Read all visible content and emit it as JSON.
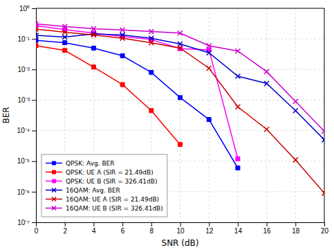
{
  "chart_data": {
    "type": "line",
    "xlabel": "SNR (dB)",
    "ylabel": "BER",
    "log": "y",
    "grid": true,
    "legend": "lower left",
    "xlim": [
      0,
      20
    ],
    "xticks": [
      0,
      2,
      4,
      6,
      8,
      10,
      12,
      14,
      16,
      18,
      20
    ],
    "ylim": [
      1e-07,
      1
    ],
    "yticks": [
      {
        "value": 1e-07,
        "label": "10⁻⁷"
      },
      {
        "value": 1e-06,
        "label": "10⁻⁶"
      },
      {
        "value": 1e-05,
        "label": "10⁻⁵"
      },
      {
        "value": 0.0001,
        "label": "10⁻⁴"
      },
      {
        "value": 0.001,
        "label": "10⁻³"
      },
      {
        "value": 0.01,
        "label": "10⁻²"
      },
      {
        "value": 0.1,
        "label": "10⁻¹"
      },
      {
        "value": 1,
        "label": "10⁰"
      }
    ],
    "series": [
      {
        "name": "QPSK: Avg. BER",
        "color": "#0000ff",
        "marker": "square",
        "x": [
          0,
          2,
          4,
          6,
          8,
          10,
          12,
          14
        ],
        "values": [
          0.09,
          0.075,
          0.05,
          0.028,
          0.008,
          0.0012,
          0.00023,
          6e-06
        ]
      },
      {
        "name": "QPSK: UE A (SIR = 21.49dB)",
        "color": "#ff0000",
        "marker": "square",
        "x": [
          0,
          2,
          4,
          6,
          8,
          10
        ],
        "values": [
          0.06,
          0.042,
          0.012,
          0.0032,
          0.00045,
          3.5e-05
        ]
      },
      {
        "name": "QPSK: UE B (SIR = 326.41dB)",
        "color": "#ff00ff",
        "marker": "square",
        "x": [
          0,
          2,
          4,
          6,
          8,
          10,
          12,
          14
        ],
        "values": [
          0.27,
          0.2,
          0.155,
          0.12,
          0.095,
          0.048,
          0.044,
          1.2e-05
        ]
      },
      {
        "name": "16QAM: Avg. BER",
        "color": "#0000cc",
        "marker": "x",
        "x": [
          0,
          2,
          4,
          6,
          8,
          10,
          12,
          14,
          16,
          18,
          20
        ],
        "values": [
          0.13,
          0.115,
          0.145,
          0.135,
          0.105,
          0.068,
          0.035,
          0.006,
          0.0035,
          0.00045,
          5e-05
        ]
      },
      {
        "name": "16QAM: UE A (SIR = 21.49dB)",
        "color": "#cc0000",
        "marker": "x",
        "x": [
          0,
          2,
          4,
          6,
          8,
          10,
          12,
          14,
          16,
          18,
          20
        ],
        "values": [
          0.21,
          0.165,
          0.135,
          0.105,
          0.075,
          0.05,
          0.011,
          0.0006,
          0.00011,
          1.1e-05,
          9e-07
        ]
      },
      {
        "name": "16QAM: UE B (SIR = 326.41dB)",
        "color": "#cc00cc",
        "marker": "x",
        "x": [
          0,
          2,
          4,
          6,
          8,
          10,
          12,
          14,
          16,
          18,
          20
        ],
        "values": [
          0.31,
          0.255,
          0.215,
          0.195,
          0.175,
          0.155,
          0.06,
          0.04,
          0.0085,
          0.0009,
          9.5e-05
        ]
      }
    ]
  }
}
